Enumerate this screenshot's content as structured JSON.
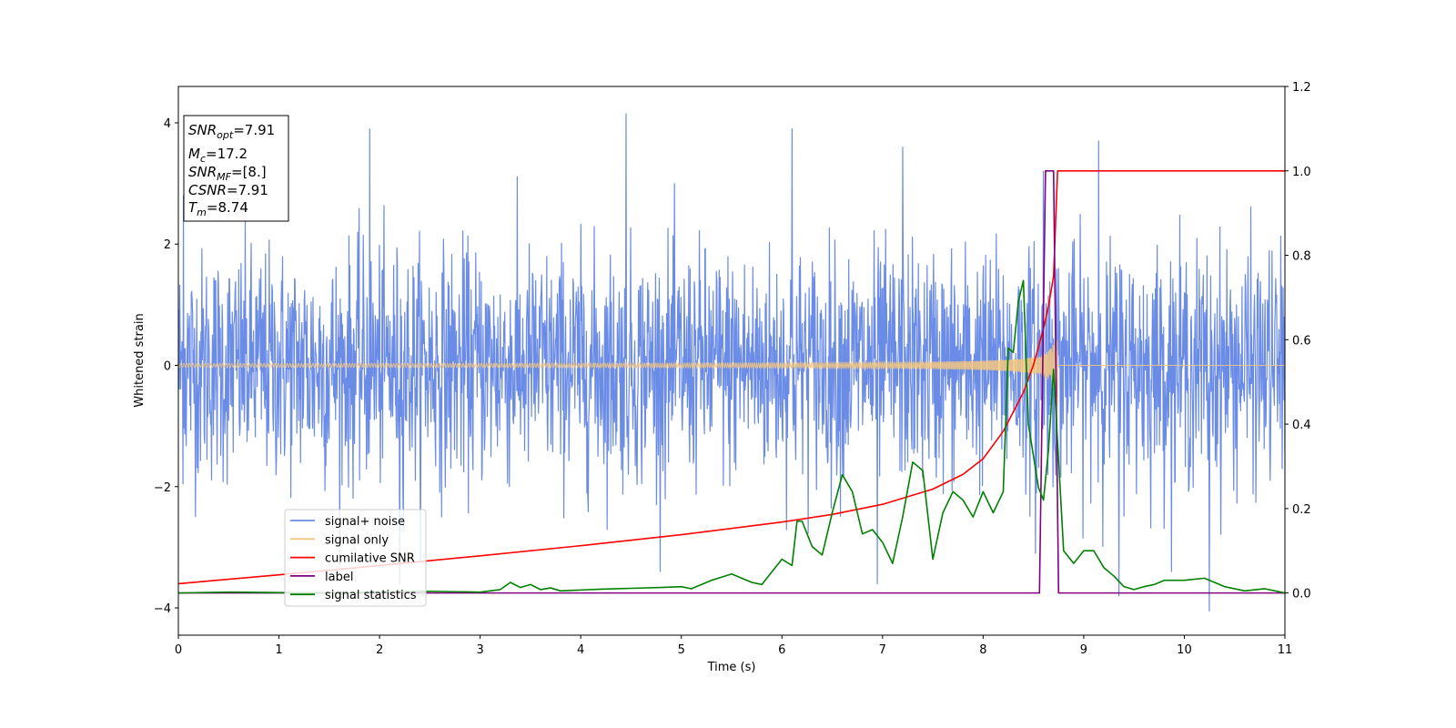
{
  "chart_data": {
    "type": "line",
    "xlabel": "Time (s)",
    "ylabel": "Whitened strain",
    "xlim": [
      0,
      11
    ],
    "ylim_left": [
      -4.45,
      4.6
    ],
    "ylim_right": [
      -0.1,
      1.2
    ],
    "x_ticks": [
      0,
      1,
      2,
      3,
      4,
      5,
      6,
      7,
      8,
      9,
      10,
      11
    ],
    "y_ticks_left": [
      -4,
      -2,
      0,
      2,
      4
    ],
    "y_ticks_right": [
      0.0,
      0.2,
      0.4,
      0.6,
      0.8,
      1.0,
      1.2
    ],
    "x_tick_labels": [
      "0",
      "1",
      "2",
      "3",
      "4",
      "5",
      "6",
      "7",
      "8",
      "9",
      "10",
      "11"
    ],
    "y_tick_labels_left": [
      "−4",
      "−2",
      "0",
      "2",
      "4"
    ],
    "y_tick_labels_right": [
      "0.0",
      "0.2",
      "0.4",
      "0.6",
      "0.8",
      "1.0",
      "1.2"
    ],
    "info_box": {
      "snr_opt": {
        "base": "SNR",
        "sub": "opt",
        "value": "=7.91"
      },
      "mc": {
        "base": "M",
        "sub": "c",
        "value": "=17.2"
      },
      "snr_mf": {
        "base": "SNR",
        "sub": "MF",
        "value": "=[8.]"
      },
      "csnr": {
        "base": "CSNR",
        "value": "=7.91"
      },
      "tm": {
        "base": "T",
        "sub": "m",
        "value": "=8.74"
      }
    },
    "legend": {
      "placement": "lower-left",
      "entries": [
        {
          "name": "signal+ noise",
          "color": "#6a8be6"
        },
        {
          "name": "signal only",
          "color": "#f5c77e"
        },
        {
          "name": "cumilative SNR",
          "color": "#ff0000"
        },
        {
          "name": "label",
          "color": "#800080"
        },
        {
          "name": "signal statistics",
          "color": "#008000"
        }
      ]
    },
    "series": [
      {
        "name": "signal+ noise",
        "axis": "left",
        "color": "#6a8be6",
        "kind": "noise",
        "std": 0.95,
        "t_start": 0,
        "t_end": 11,
        "peaks": [
          [
            0.05,
            2.8
          ],
          [
            1.9,
            3.9
          ],
          [
            4.45,
            4.15
          ],
          [
            6.1,
            3.9
          ],
          [
            7.2,
            3.6
          ],
          [
            8.6,
            3.2
          ],
          [
            9.15,
            3.7
          ],
          [
            9.35,
            -3.8
          ],
          [
            10.25,
            -4.05
          ],
          [
            2.2,
            -3.6
          ],
          [
            6.95,
            -3.6
          ],
          [
            8.52,
            -3.1
          ]
        ]
      },
      {
        "name": "signal only",
        "axis": "left",
        "color": "#f5c77e",
        "kind": "chirp",
        "t_start": 0,
        "t_merge": 8.74,
        "amp_start": 0.02,
        "amp_merge": 0.75
      },
      {
        "name": "cumilative SNR",
        "axis": "right",
        "color": "#ff0000",
        "x": [
          0,
          1,
          2,
          3,
          4,
          5,
          6,
          6.5,
          7,
          7.5,
          7.8,
          8.0,
          8.2,
          8.4,
          8.5,
          8.6,
          8.65,
          8.7,
          8.74,
          9,
          10,
          11
        ],
        "values": [
          0.022,
          0.043,
          0.065,
          0.088,
          0.112,
          0.138,
          0.168,
          0.186,
          0.21,
          0.246,
          0.281,
          0.318,
          0.383,
          0.475,
          0.54,
          0.626,
          0.68,
          0.75,
          1.0,
          1.0,
          1.0,
          1.0
        ]
      },
      {
        "name": "label",
        "axis": "right",
        "color": "#800080",
        "x": [
          0,
          8.56,
          8.62,
          8.7,
          8.75,
          11
        ],
        "values": [
          0,
          0,
          1.0,
          1.0,
          0,
          0
        ]
      },
      {
        "name": "signal statistics",
        "axis": "right",
        "color": "#008000",
        "x": [
          0,
          0.5,
          1,
          1.5,
          2,
          2.5,
          3,
          3.2,
          3.3,
          3.4,
          3.5,
          3.6,
          3.7,
          3.8,
          4,
          4.2,
          4.5,
          4.8,
          5,
          5.1,
          5.3,
          5.5,
          5.7,
          5.8,
          5.9,
          6.0,
          6.1,
          6.15,
          6.2,
          6.3,
          6.4,
          6.5,
          6.6,
          6.7,
          6.8,
          6.9,
          7.0,
          7.1,
          7.2,
          7.3,
          7.4,
          7.5,
          7.6,
          7.7,
          7.8,
          7.9,
          8.0,
          8.1,
          8.2,
          8.25,
          8.3,
          8.35,
          8.4,
          8.45,
          8.55,
          8.6,
          8.65,
          8.7,
          8.8,
          8.9,
          9.0,
          9.1,
          9.2,
          9.3,
          9.4,
          9.5,
          9.6,
          9.7,
          9.8,
          10.0,
          10.2,
          10.4,
          10.6,
          10.8,
          11.0
        ],
        "values": [
          0.0,
          0.002,
          0.001,
          0.0,
          0.002,
          0.004,
          0.002,
          0.008,
          0.025,
          0.013,
          0.02,
          0.008,
          0.012,
          0.005,
          0.007,
          0.009,
          0.011,
          0.013,
          0.015,
          0.01,
          0.03,
          0.045,
          0.025,
          0.02,
          0.05,
          0.08,
          0.065,
          0.17,
          0.17,
          0.11,
          0.09,
          0.19,
          0.28,
          0.24,
          0.14,
          0.15,
          0.12,
          0.07,
          0.18,
          0.31,
          0.29,
          0.08,
          0.19,
          0.24,
          0.22,
          0.18,
          0.24,
          0.19,
          0.24,
          0.58,
          0.57,
          0.69,
          0.74,
          0.4,
          0.25,
          0.22,
          0.34,
          0.53,
          0.1,
          0.07,
          0.1,
          0.1,
          0.06,
          0.04,
          0.015,
          0.008,
          0.015,
          0.02,
          0.03,
          0.03,
          0.035,
          0.015,
          0.005,
          0.01,
          0.0
        ]
      }
    ]
  }
}
